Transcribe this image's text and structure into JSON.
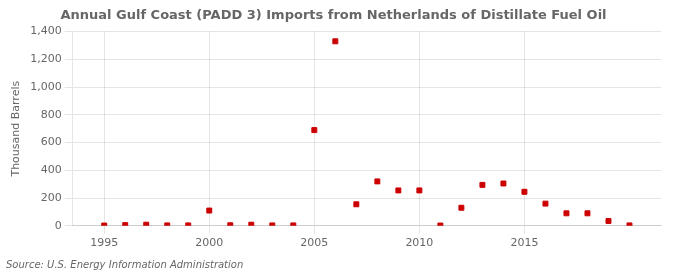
{
  "chart_data": {
    "type": "scatter",
    "title": "Annual Gulf Coast (PADD 3) Imports from Netherlands of Distillate Fuel Oil",
    "ylabel": "Thousand Barrels",
    "annotation": "Source: U.S. Energy Information Administration",
    "x": [
      1995,
      1996,
      1997,
      1998,
      1999,
      2000,
      2001,
      2002,
      2003,
      2004,
      2005,
      2006,
      2007,
      2008,
      2009,
      2010,
      2011,
      2012,
      2013,
      2014,
      2015,
      2016,
      2017,
      2018,
      2019,
      2020
    ],
    "values": [
      2,
      5,
      8,
      3,
      3,
      110,
      4,
      8,
      3,
      3,
      690,
      1330,
      155,
      320,
      255,
      255,
      2,
      130,
      295,
      305,
      245,
      160,
      90,
      90,
      35,
      3
    ],
    "color": "#cc0000",
    "marker": "square",
    "xlim": [
      1993.5,
      2021.5
    ],
    "xticks": [
      1995,
      2000,
      2005,
      2010,
      2015
    ],
    "ylim": [
      0,
      1400
    ],
    "yticks": [
      0,
      200,
      400,
      600,
      800,
      {
        "value": 1000,
        "label": "1,000"
      },
      {
        "value": 1200,
        "label": "1,200"
      },
      {
        "value": 1400,
        "label": "1,400"
      }
    ],
    "grid": true
  }
}
